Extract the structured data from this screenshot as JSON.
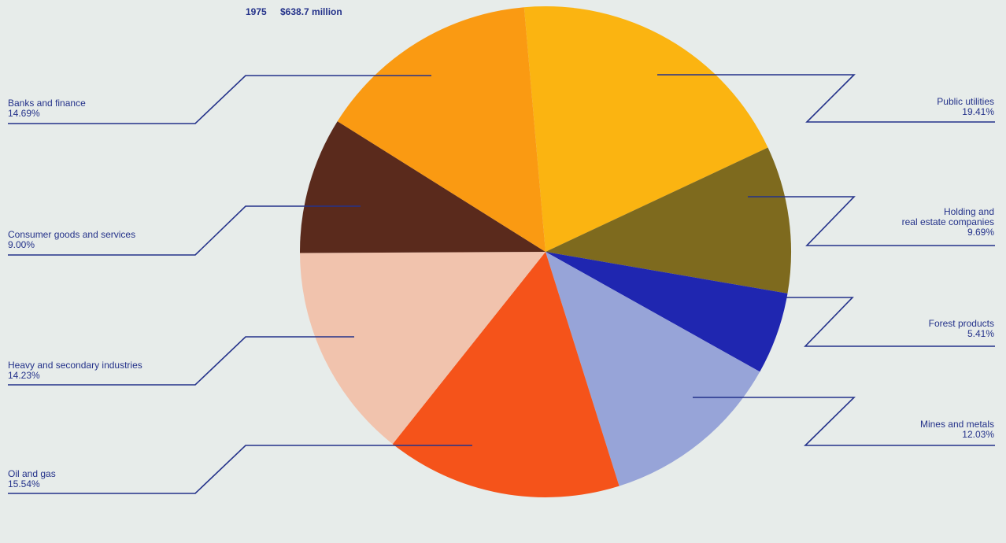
{
  "chart_data": {
    "type": "pie",
    "year": "1975",
    "total": "$638.7 million",
    "slices": [
      {
        "name": "Public utilities",
        "label": [
          "Public utilities"
        ],
        "value_text": "19.41%",
        "value": 19.41,
        "color": "#fbb411"
      },
      {
        "name": "Holding and real estate companies",
        "label": [
          "Holding and",
          "real estate companies"
        ],
        "value_text": "9.69%",
        "value": 9.69,
        "color": "#7e6a1e"
      },
      {
        "name": "Forest products",
        "label": [
          "Forest products"
        ],
        "value_text": "5.41%",
        "value": 5.41,
        "color": "#1f26b0"
      },
      {
        "name": "Mines and metals",
        "label": [
          "Mines and metals"
        ],
        "value_text": "12.03%",
        "value": 12.03,
        "color": "#97a4d8"
      },
      {
        "name": "Oil and gas",
        "label": [
          "Oil and gas"
        ],
        "value_text": "15.54%",
        "value": 15.54,
        "color": "#f5531a"
      },
      {
        "name": "Heavy and secondary industries",
        "label": [
          "Heavy and secondary industries"
        ],
        "value_text": "14.23%",
        "value": 14.23,
        "color": "#f1c3ad"
      },
      {
        "name": "Consumer goods and services",
        "label": [
          "Consumer goods and services"
        ],
        "value_text": "9.00%",
        "value": 9.0,
        "color": "#5a2a1c"
      },
      {
        "name": "Banks and finance",
        "label": [
          "Banks and finance"
        ],
        "value_text": "14.69%",
        "value": 14.69,
        "color": "#fa9a12"
      }
    ],
    "legend": "none",
    "grid": false
  }
}
